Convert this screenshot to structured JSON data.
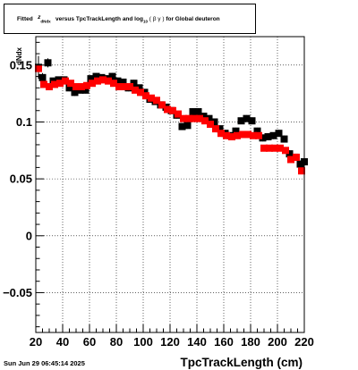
{
  "title": "Fitted  z_dNdx  versus TpcTrackLength and log10 ( β γ ) for Global deuteron",
  "title_parts": {
    "prefix": "Fitted",
    "z": "z",
    "z_sub": "dNdx",
    "middle": "versus TpcTrackLength and log",
    "log_sub": "10",
    "beta_gamma": "( β γ )",
    "suffix": "for Global deuteron"
  },
  "footer": "Sun Jun 29 06:45:14 2025",
  "chart_data": {
    "type": "scatter",
    "xlabel": "TpcTrackLength (cm)",
    "ylabel": "dNdx",
    "xlim": [
      20,
      220
    ],
    "ylim": [
      -0.085,
      0.175
    ],
    "grid": true,
    "x_ticks": [
      20,
      40,
      60,
      80,
      100,
      120,
      140,
      160,
      180,
      200,
      220
    ],
    "x_tick_labels": [
      "20",
      "40",
      "60",
      "80",
      "100",
      "120",
      "140",
      "160",
      "180",
      "200",
      "220"
    ],
    "y_ticks": [
      -0.05,
      0,
      0.05,
      0.1,
      0.15
    ],
    "y_tick_labels": [
      "−0.05",
      "0",
      "0.05",
      "0.1",
      "0.15"
    ],
    "colors": {
      "series_black": "#000000",
      "series_red": "#ff0000",
      "grid": "#000000"
    },
    "series": [
      {
        "color": "#000000",
        "points": [
          [
            22,
            0.148,
            0.01
          ],
          [
            25,
            0.139,
            0.004
          ],
          [
            29,
            0.152,
            0.004
          ],
          [
            33,
            0.136,
            0.003
          ],
          [
            37,
            0.137,
            0.003
          ],
          [
            41,
            0.137,
            0.003
          ],
          [
            45,
            0.13,
            0.003
          ],
          [
            49,
            0.126,
            0.003
          ],
          [
            53,
            0.128,
            0.003
          ],
          [
            57,
            0.128,
            0.003
          ],
          [
            61,
            0.138,
            0.003
          ],
          [
            65,
            0.14,
            0.003
          ],
          [
            69,
            0.139,
            0.003
          ],
          [
            73,
            0.138,
            0.003
          ],
          [
            77,
            0.14,
            0.003
          ],
          [
            81,
            0.136,
            0.003
          ],
          [
            85,
            0.135,
            0.003
          ],
          [
            89,
            0.13,
            0.003
          ],
          [
            93,
            0.134,
            0.003
          ],
          [
            97,
            0.13,
            0.003
          ],
          [
            101,
            0.126,
            0.003
          ],
          [
            105,
            0.12,
            0.003
          ],
          [
            109,
            0.118,
            0.003
          ],
          [
            113,
            0.115,
            0.003
          ],
          [
            117,
            0.113,
            0.003
          ],
          [
            121,
            0.11,
            0.003
          ],
          [
            125,
            0.106,
            0.003
          ],
          [
            129,
            0.096,
            0.003
          ],
          [
            133,
            0.097,
            0.003
          ],
          [
            137,
            0.109,
            0.003
          ],
          [
            141,
            0.109,
            0.003
          ],
          [
            145,
            0.105,
            0.003
          ],
          [
            149,
            0.103,
            0.003
          ],
          [
            153,
            0.1,
            0.003
          ],
          [
            157,
            0.094,
            0.003
          ],
          [
            161,
            0.09,
            0.003
          ],
          [
            165,
            0.088,
            0.003
          ],
          [
            169,
            0.092,
            0.003
          ],
          [
            173,
            0.101,
            0.003
          ],
          [
            177,
            0.103,
            0.003
          ],
          [
            181,
            0.101,
            0.003
          ],
          [
            185,
            0.092,
            0.003
          ],
          [
            189,
            0.086,
            0.003
          ],
          [
            193,
            0.087,
            0.003
          ],
          [
            197,
            0.088,
            0.003
          ],
          [
            201,
            0.09,
            0.003
          ],
          [
            205,
            0.085,
            0.003
          ],
          [
            209,
            0.072,
            0.003
          ],
          [
            213,
            0.069,
            0.003
          ],
          [
            217,
            0.063,
            0.003
          ],
          [
            220,
            0.065,
            0.003
          ]
        ]
      },
      {
        "color": "#ff0000",
        "points": [
          [
            22,
            0.147,
            0.0025
          ],
          [
            26,
            0.133,
            0.0025
          ],
          [
            30,
            0.131,
            0.0025
          ],
          [
            34,
            0.133,
            0.0025
          ],
          [
            38,
            0.134,
            0.0025
          ],
          [
            42,
            0.136,
            0.0025
          ],
          [
            46,
            0.134,
            0.0025
          ],
          [
            50,
            0.131,
            0.0025
          ],
          [
            54,
            0.131,
            0.0025
          ],
          [
            58,
            0.132,
            0.0025
          ],
          [
            62,
            0.134,
            0.0025
          ],
          [
            66,
            0.136,
            0.0025
          ],
          [
            70,
            0.137,
            0.0025
          ],
          [
            74,
            0.136,
            0.0025
          ],
          [
            78,
            0.134,
            0.0025
          ],
          [
            82,
            0.131,
            0.0025
          ],
          [
            86,
            0.131,
            0.0025
          ],
          [
            90,
            0.131,
            0.0025
          ],
          [
            94,
            0.128,
            0.0025
          ],
          [
            98,
            0.126,
            0.0025
          ],
          [
            102,
            0.123,
            0.0025
          ],
          [
            106,
            0.121,
            0.0025
          ],
          [
            110,
            0.119,
            0.0025
          ],
          [
            114,
            0.115,
            0.0025
          ],
          [
            118,
            0.111,
            0.0025
          ],
          [
            122,
            0.11,
            0.0025
          ],
          [
            126,
            0.107,
            0.0025
          ],
          [
            130,
            0.103,
            0.0025
          ],
          [
            134,
            0.103,
            0.0025
          ],
          [
            138,
            0.103,
            0.0025
          ],
          [
            142,
            0.103,
            0.0025
          ],
          [
            146,
            0.101,
            0.0025
          ],
          [
            150,
            0.098,
            0.0025
          ],
          [
            154,
            0.094,
            0.0025
          ],
          [
            158,
            0.09,
            0.0025
          ],
          [
            162,
            0.088,
            0.0025
          ],
          [
            166,
            0.087,
            0.0025
          ],
          [
            170,
            0.088,
            0.0025
          ],
          [
            174,
            0.089,
            0.0025
          ],
          [
            178,
            0.089,
            0.0025
          ],
          [
            182,
            0.088,
            0.0025
          ],
          [
            186,
            0.088,
            0.0025
          ],
          [
            190,
            0.077,
            0.0025
          ],
          [
            194,
            0.077,
            0.0025
          ],
          [
            198,
            0.077,
            0.0025
          ],
          [
            202,
            0.077,
            0.0025
          ],
          [
            206,
            0.075,
            0.0025
          ],
          [
            210,
            0.067,
            0.0025
          ],
          [
            214,
            0.069,
            0.0025
          ],
          [
            218,
            0.057,
            0.0025
          ]
        ]
      }
    ]
  }
}
